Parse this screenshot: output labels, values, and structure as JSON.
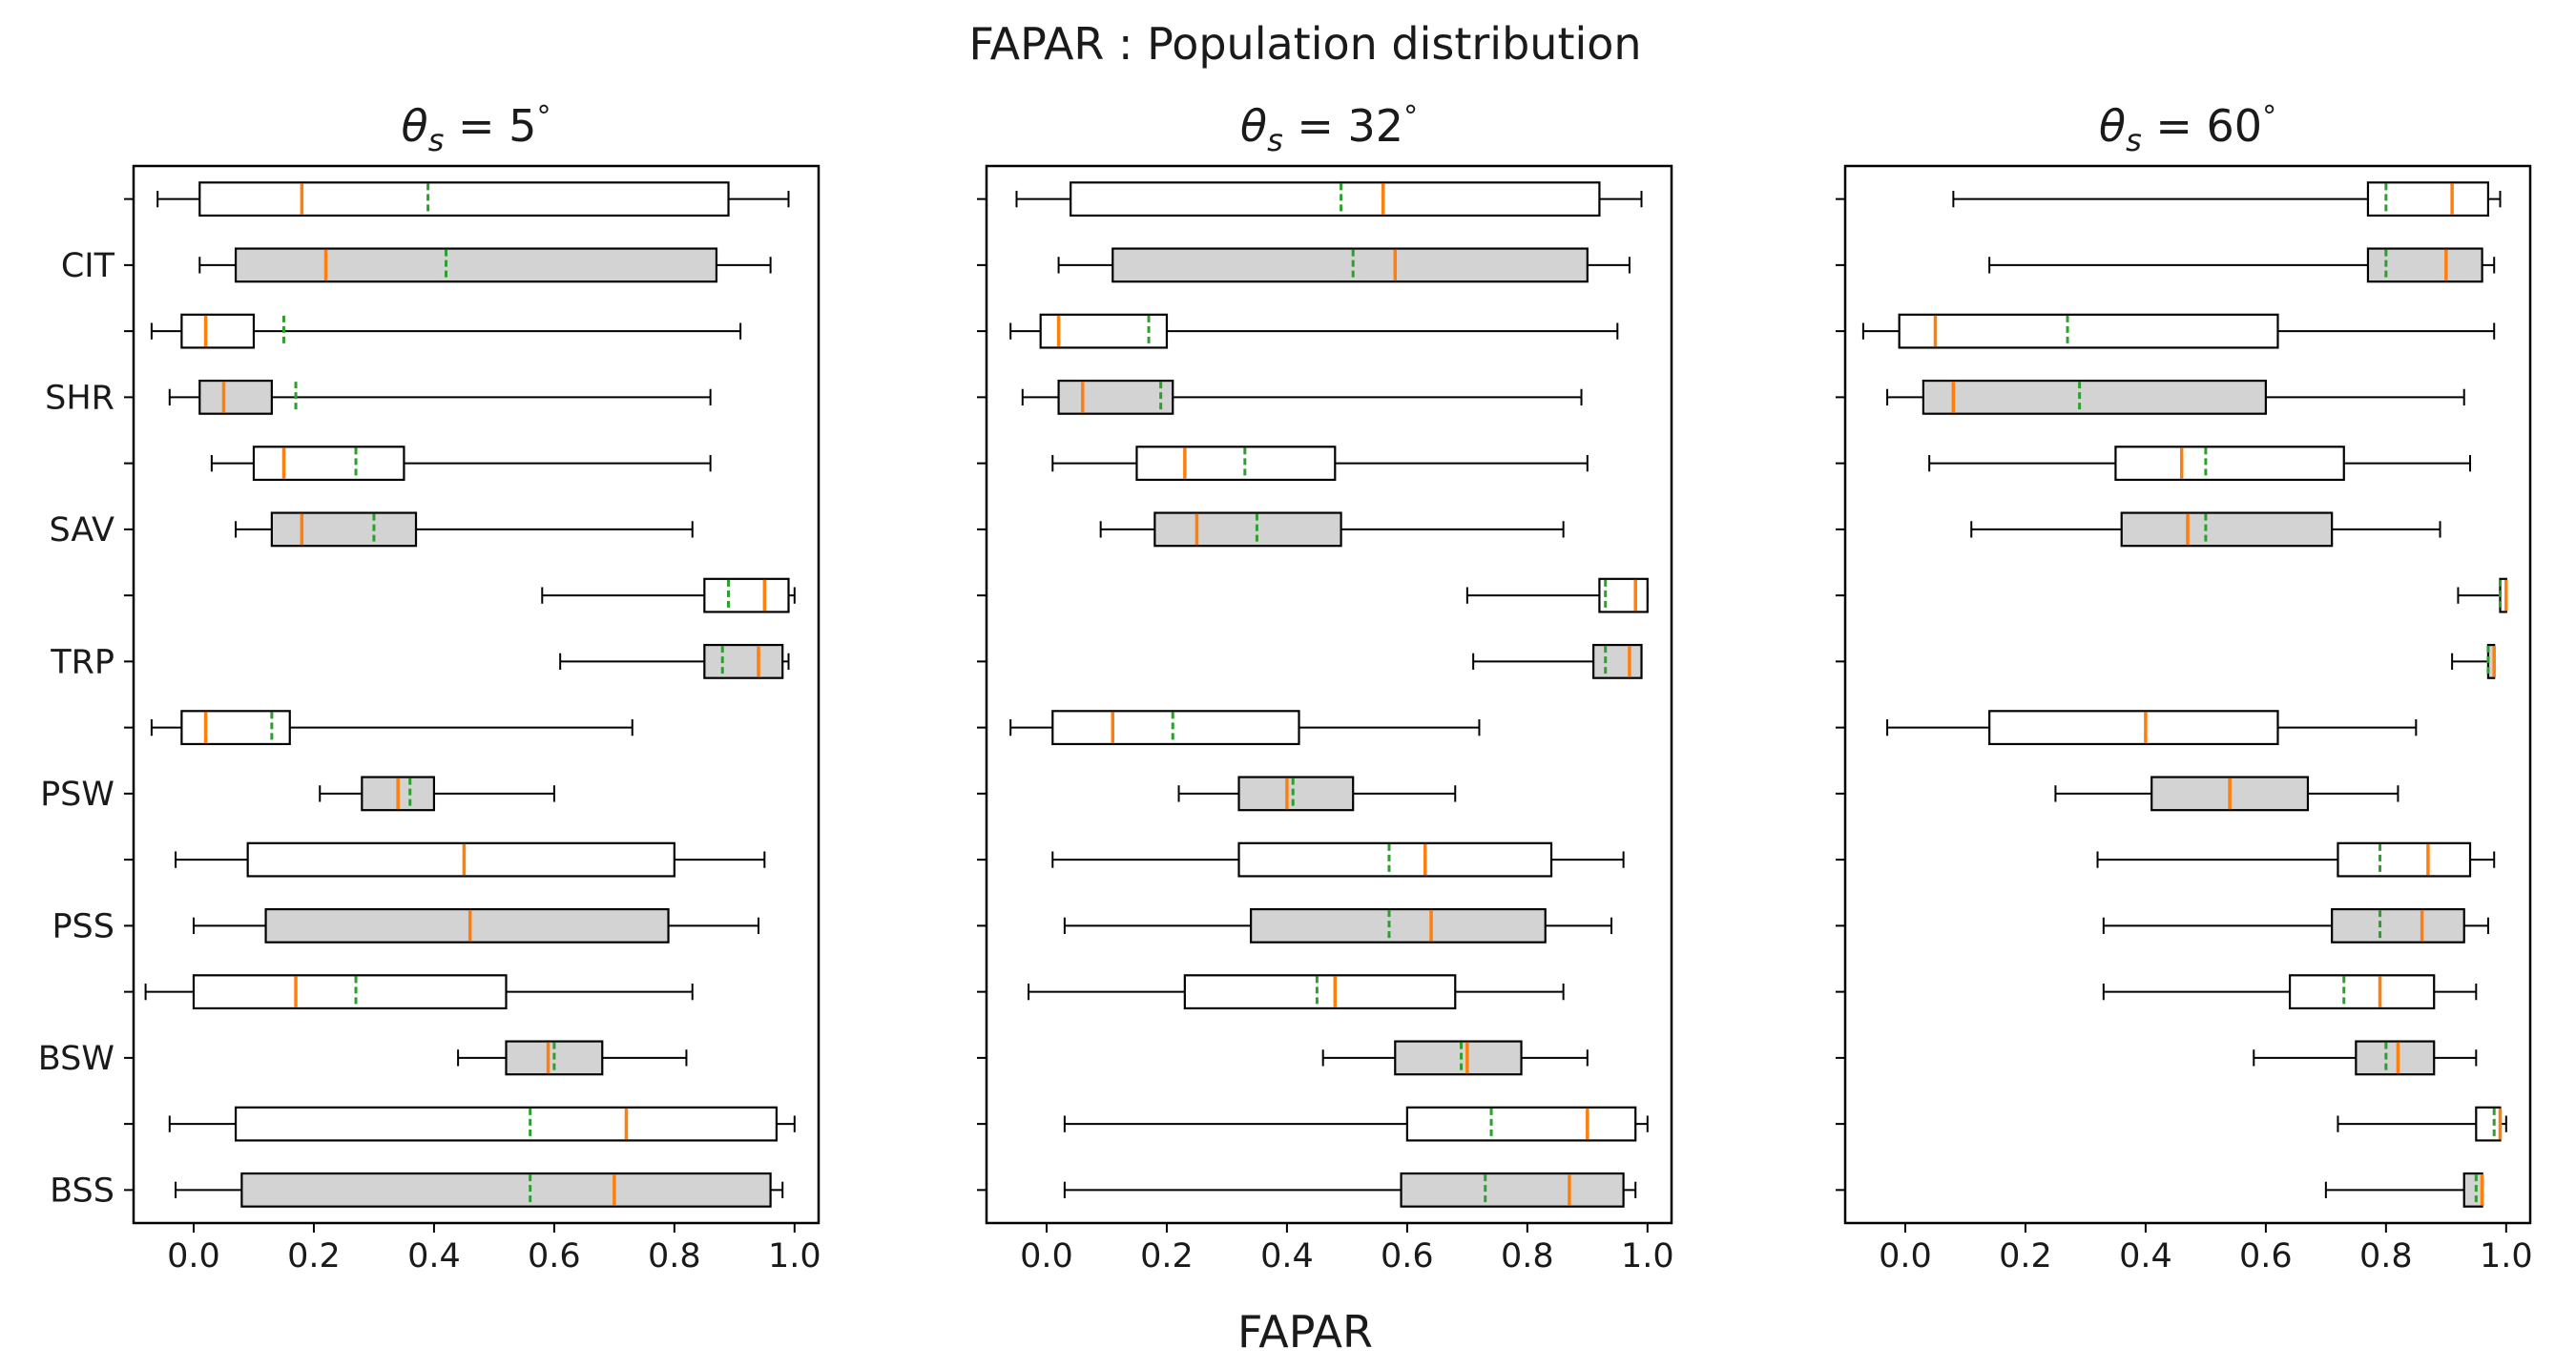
{
  "chart_data": {
    "type": "boxplot",
    "title": "FAPAR : Population distribution",
    "xlabel": "FAPAR",
    "xlim": [
      -0.1,
      1.04
    ],
    "xticks": [
      0.0,
      0.2,
      0.4,
      0.6,
      0.8,
      1.0
    ],
    "xtick_labels": [
      "0.0",
      "0.2",
      "0.4",
      "0.6",
      "0.8",
      "1.0"
    ],
    "categories": [
      "CIT",
      "SHR",
      "SAV",
      "TRP",
      "PSW",
      "PSS",
      "BSW",
      "BSS"
    ],
    "legend": {
      "median_color": "#ff7f0e",
      "mean_color": "#2ca02c",
      "filled_box_color": "#d3d3d3",
      "open_box_color": "#ffffff"
    },
    "panels": [
      {
        "title_symbol": "θ",
        "title_subscript": "s",
        "title_value": " = 5",
        "title_unit": "°",
        "boxes": [
          {
            "min": -0.06,
            "q1": 0.01,
            "median": 0.18,
            "mean": 0.39,
            "q3": 0.89,
            "max": 0.99,
            "filled": false
          },
          {
            "min": 0.01,
            "q1": 0.07,
            "median": 0.22,
            "mean": 0.42,
            "q3": 0.87,
            "max": 0.96,
            "filled": true
          },
          {
            "min": -0.07,
            "q1": -0.02,
            "median": 0.02,
            "mean": 0.15,
            "q3": 0.1,
            "max": 0.91,
            "filled": false
          },
          {
            "min": -0.04,
            "q1": 0.01,
            "median": 0.05,
            "mean": 0.17,
            "q3": 0.13,
            "max": 0.86,
            "filled": true
          },
          {
            "min": 0.03,
            "q1": 0.1,
            "median": 0.15,
            "mean": 0.27,
            "q3": 0.35,
            "max": 0.86,
            "filled": false
          },
          {
            "min": 0.07,
            "q1": 0.13,
            "median": 0.18,
            "mean": 0.3,
            "q3": 0.37,
            "max": 0.83,
            "filled": true
          },
          {
            "min": 0.58,
            "q1": 0.85,
            "median": 0.95,
            "mean": 0.89,
            "q3": 0.99,
            "max": 1.0,
            "filled": false
          },
          {
            "min": 0.61,
            "q1": 0.85,
            "median": 0.94,
            "mean": 0.88,
            "q3": 0.98,
            "max": 0.99,
            "filled": true
          },
          {
            "min": -0.07,
            "q1": -0.02,
            "median": 0.02,
            "mean": 0.13,
            "q3": 0.16,
            "max": 0.73,
            "filled": false
          },
          {
            "min": 0.21,
            "q1": 0.28,
            "median": 0.34,
            "mean": 0.36,
            "q3": 0.4,
            "max": 0.6,
            "filled": true
          },
          {
            "min": -0.03,
            "q1": 0.09,
            "median": 0.45,
            "mean": 0.45,
            "q3": 0.8,
            "max": 0.95,
            "filled": false
          },
          {
            "min": 0.0,
            "q1": 0.12,
            "median": 0.46,
            "mean": 0.46,
            "q3": 0.79,
            "max": 0.94,
            "filled": true
          },
          {
            "min": -0.08,
            "q1": 0.0,
            "median": 0.17,
            "mean": 0.27,
            "q3": 0.52,
            "max": 0.83,
            "filled": false
          },
          {
            "min": 0.44,
            "q1": 0.52,
            "median": 0.59,
            "mean": 0.6,
            "q3": 0.68,
            "max": 0.82,
            "filled": true
          },
          {
            "min": -0.04,
            "q1": 0.07,
            "median": 0.72,
            "mean": 0.56,
            "q3": 0.97,
            "max": 1.0,
            "filled": false
          },
          {
            "min": -0.03,
            "q1": 0.08,
            "median": 0.7,
            "mean": 0.56,
            "q3": 0.96,
            "max": 0.98,
            "filled": true
          }
        ]
      },
      {
        "title_symbol": "θ",
        "title_subscript": "s",
        "title_value": " = 32",
        "title_unit": "°",
        "boxes": [
          {
            "min": -0.05,
            "q1": 0.04,
            "median": 0.56,
            "mean": 0.49,
            "q3": 0.92,
            "max": 0.99,
            "filled": false
          },
          {
            "min": 0.02,
            "q1": 0.11,
            "median": 0.58,
            "mean": 0.51,
            "q3": 0.9,
            "max": 0.97,
            "filled": true
          },
          {
            "min": -0.06,
            "q1": -0.01,
            "median": 0.02,
            "mean": 0.17,
            "q3": 0.2,
            "max": 0.95,
            "filled": false
          },
          {
            "min": -0.04,
            "q1": 0.02,
            "median": 0.06,
            "mean": 0.19,
            "q3": 0.21,
            "max": 0.89,
            "filled": true
          },
          {
            "min": 0.01,
            "q1": 0.15,
            "median": 0.23,
            "mean": 0.33,
            "q3": 0.48,
            "max": 0.9,
            "filled": false
          },
          {
            "min": 0.09,
            "q1": 0.18,
            "median": 0.25,
            "mean": 0.35,
            "q3": 0.49,
            "max": 0.86,
            "filled": true
          },
          {
            "min": 0.7,
            "q1": 0.92,
            "median": 0.98,
            "mean": 0.93,
            "q3": 1.0,
            "max": 1.0,
            "filled": false
          },
          {
            "min": 0.71,
            "q1": 0.91,
            "median": 0.97,
            "mean": 0.93,
            "q3": 0.99,
            "max": 0.99,
            "filled": true
          },
          {
            "min": -0.06,
            "q1": 0.01,
            "median": 0.11,
            "mean": 0.21,
            "q3": 0.42,
            "max": 0.72,
            "filled": false
          },
          {
            "min": 0.22,
            "q1": 0.32,
            "median": 0.4,
            "mean": 0.41,
            "q3": 0.51,
            "max": 0.68,
            "filled": true
          },
          {
            "min": 0.01,
            "q1": 0.32,
            "median": 0.63,
            "mean": 0.57,
            "q3": 0.84,
            "max": 0.96,
            "filled": false
          },
          {
            "min": 0.03,
            "q1": 0.34,
            "median": 0.64,
            "mean": 0.57,
            "q3": 0.83,
            "max": 0.94,
            "filled": true
          },
          {
            "min": -0.03,
            "q1": 0.23,
            "median": 0.48,
            "mean": 0.45,
            "q3": 0.68,
            "max": 0.86,
            "filled": false
          },
          {
            "min": 0.46,
            "q1": 0.58,
            "median": 0.7,
            "mean": 0.69,
            "q3": 0.79,
            "max": 0.9,
            "filled": true
          },
          {
            "min": 0.03,
            "q1": 0.6,
            "median": 0.9,
            "mean": 0.74,
            "q3": 0.98,
            "max": 1.0,
            "filled": false
          },
          {
            "min": 0.03,
            "q1": 0.59,
            "median": 0.87,
            "mean": 0.73,
            "q3": 0.96,
            "max": 0.98,
            "filled": true
          }
        ]
      },
      {
        "title_symbol": "θ",
        "title_subscript": "s",
        "title_value": " = 60",
        "title_unit": "°",
        "boxes": [
          {
            "min": 0.08,
            "q1": 0.77,
            "median": 0.91,
            "mean": 0.8,
            "q3": 0.97,
            "max": 0.99,
            "filled": false
          },
          {
            "min": 0.14,
            "q1": 0.77,
            "median": 0.9,
            "mean": 0.8,
            "q3": 0.96,
            "max": 0.98,
            "filled": true
          },
          {
            "min": -0.07,
            "q1": -0.01,
            "median": 0.05,
            "mean": 0.27,
            "q3": 0.62,
            "max": 0.98,
            "filled": false
          },
          {
            "min": -0.03,
            "q1": 0.03,
            "median": 0.08,
            "mean": 0.29,
            "q3": 0.6,
            "max": 0.93,
            "filled": true
          },
          {
            "min": 0.04,
            "q1": 0.35,
            "median": 0.46,
            "mean": 0.5,
            "q3": 0.73,
            "max": 0.94,
            "filled": false
          },
          {
            "min": 0.11,
            "q1": 0.36,
            "median": 0.47,
            "mean": 0.5,
            "q3": 0.71,
            "max": 0.89,
            "filled": true
          },
          {
            "min": 0.92,
            "q1": 0.99,
            "median": 1.0,
            "mean": 0.99,
            "q3": 1.0,
            "max": 1.0,
            "filled": false
          },
          {
            "min": 0.91,
            "q1": 0.97,
            "median": 0.98,
            "mean": 0.97,
            "q3": 0.98,
            "max": 0.98,
            "filled": true
          },
          {
            "min": -0.03,
            "q1": 0.14,
            "median": 0.4,
            "mean": 0.4,
            "q3": 0.62,
            "max": 0.85,
            "filled": false
          },
          {
            "min": 0.25,
            "q1": 0.41,
            "median": 0.54,
            "mean": 0.54,
            "q3": 0.67,
            "max": 0.82,
            "filled": true
          },
          {
            "min": 0.32,
            "q1": 0.72,
            "median": 0.87,
            "mean": 0.79,
            "q3": 0.94,
            "max": 0.98,
            "filled": false
          },
          {
            "min": 0.33,
            "q1": 0.71,
            "median": 0.86,
            "mean": 0.79,
            "q3": 0.93,
            "max": 0.97,
            "filled": true
          },
          {
            "min": 0.33,
            "q1": 0.64,
            "median": 0.79,
            "mean": 0.73,
            "q3": 0.88,
            "max": 0.95,
            "filled": false
          },
          {
            "min": 0.58,
            "q1": 0.75,
            "median": 0.82,
            "mean": 0.8,
            "q3": 0.88,
            "max": 0.95,
            "filled": true
          },
          {
            "min": 0.72,
            "q1": 0.95,
            "median": 0.99,
            "mean": 0.98,
            "q3": 0.99,
            "max": 1.0,
            "filled": false
          },
          {
            "min": 0.7,
            "q1": 0.93,
            "median": 0.96,
            "mean": 0.95,
            "q3": 0.96,
            "max": 0.96,
            "filled": true
          }
        ]
      }
    ]
  }
}
